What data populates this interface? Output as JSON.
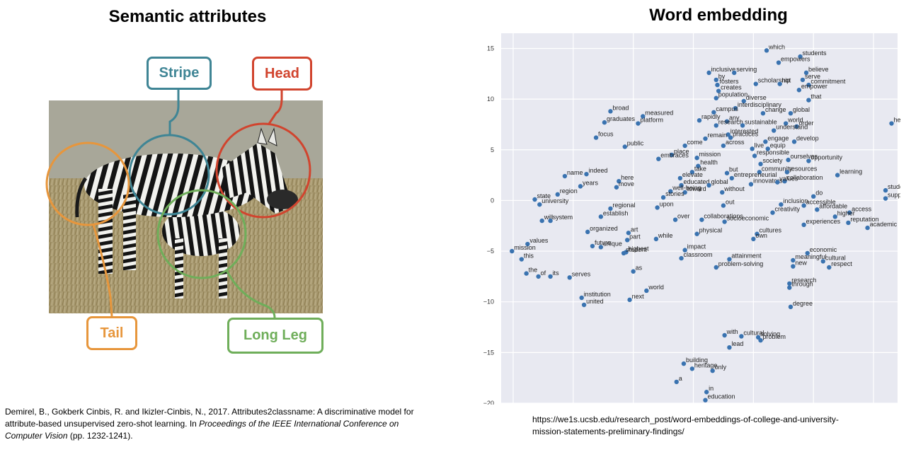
{
  "left_panel": {
    "title": "Semantic attributes",
    "labels": {
      "stripe": "Stripe",
      "head": "Head",
      "tail": "Tail",
      "long_leg": "Long Leg"
    },
    "colors": {
      "stripe": "#3f8595",
      "head": "#d1442e",
      "tail": "#e7963c",
      "long_leg": "#6fae5a"
    },
    "citation": {
      "authors": "Demirel, B., Gokberk Cinbis, R. and Ikizler-Cinbis, N., 2017. Attributes2classname: A discriminative model for attribute-based unsupervised zero-shot learning. In ",
      "venue": "Proceedings of the IEEE International Conference on Computer Vision",
      "pages": " (pp. 1232-1241)."
    }
  },
  "right_panel": {
    "title": "Word embedding",
    "source_url": "https://we1s.ucsb.edu/research_post/word-embeddings-of-college-and-university-mission-statements-preliminary-findings/",
    "chart_data": {
      "type": "scatter",
      "title": "",
      "xlabel": "",
      "ylabel": "",
      "ylim": [
        -20,
        16.5
      ],
      "xlim": [
        -11,
        22
      ],
      "y_ticks": [
        15,
        10,
        5,
        0,
        -5,
        -10,
        -15,
        -20
      ],
      "y_tick_labels": [
        "15",
        "10",
        "5",
        "0",
        "−5",
        "−10",
        "−15",
        "−20"
      ],
      "grid": true,
      "point_color": "#3a73b0",
      "points": [
        {
          "x": 11.1,
          "y": 14.8,
          "label": "which"
        },
        {
          "x": 13.9,
          "y": 14.2,
          "label": "students"
        },
        {
          "x": 12.1,
          "y": 13.6,
          "label": "empowers"
        },
        {
          "x": 14.4,
          "y": 12.6,
          "label": "believe"
        },
        {
          "x": 14.1,
          "y": 11.9,
          "label": "serve"
        },
        {
          "x": 6.3,
          "y": 12.6,
          "label": "inclusive"
        },
        {
          "x": 8.4,
          "y": 12.6,
          "label": "serving"
        },
        {
          "x": 6.9,
          "y": 11.9,
          "label": "by"
        },
        {
          "x": 7.0,
          "y": 11.4,
          "label": "fosters"
        },
        {
          "x": 10.2,
          "y": 11.5,
          "label": "scholarship"
        },
        {
          "x": 12.2,
          "y": 11.5,
          "label": "not"
        },
        {
          "x": 14.6,
          "y": 11.4,
          "label": "commitment"
        },
        {
          "x": 13.8,
          "y": 10.9,
          "label": "empower"
        },
        {
          "x": 7.1,
          "y": 10.8,
          "label": "creates"
        },
        {
          "x": 6.9,
          "y": 10.1,
          "label": "population"
        },
        {
          "x": 9.2,
          "y": 9.8,
          "label": "diverse"
        },
        {
          "x": 14.6,
          "y": 9.9,
          "label": "that"
        },
        {
          "x": 8.5,
          "y": 9.1,
          "label": "interdisciplinary"
        },
        {
          "x": 6.7,
          "y": 8.7,
          "label": "campus"
        },
        {
          "x": 10.8,
          "y": 8.6,
          "label": "change"
        },
        {
          "x": 13.1,
          "y": 8.6,
          "label": "global"
        },
        {
          "x": -1.9,
          "y": 8.8,
          "label": "broad"
        },
        {
          "x": 0.8,
          "y": 8.3,
          "label": "measured"
        },
        {
          "x": 5.5,
          "y": 7.9,
          "label": "rapidly"
        },
        {
          "x": 7.8,
          "y": 7.8,
          "label": "any"
        },
        {
          "x": 6.9,
          "y": 7.4,
          "label": "research"
        },
        {
          "x": 9.1,
          "y": 7.4,
          "label": "sustainable"
        },
        {
          "x": 12.7,
          "y": 7.6,
          "label": "world"
        },
        {
          "x": 13.6,
          "y": 7.3,
          "label": "order"
        },
        {
          "x": 21.5,
          "y": 7.6,
          "label": "head"
        },
        {
          "x": -2.4,
          "y": 7.7,
          "label": "graduates"
        },
        {
          "x": 0.4,
          "y": 7.6,
          "label": "platform"
        },
        {
          "x": 11.7,
          "y": 6.9,
          "label": "understand"
        },
        {
          "x": 7.9,
          "y": 6.5,
          "label": "interested"
        },
        {
          "x": -3.1,
          "y": 6.2,
          "label": "focus"
        },
        {
          "x": 6.0,
          "y": 6.1,
          "label": "remain"
        },
        {
          "x": 8.1,
          "y": 6.2,
          "label": "practices"
        },
        {
          "x": 4.3,
          "y": 5.4,
          "label": "come"
        },
        {
          "x": 7.5,
          "y": 5.4,
          "label": "across"
        },
        {
          "x": 11.0,
          "y": 5.8,
          "label": "engage"
        },
        {
          "x": 13.4,
          "y": 5.8,
          "label": "develop"
        },
        {
          "x": -0.7,
          "y": 5.3,
          "label": "public"
        },
        {
          "x": 9.9,
          "y": 5.1,
          "label": "live"
        },
        {
          "x": 11.2,
          "y": 5.1,
          "label": "equip"
        },
        {
          "x": 3.2,
          "y": 4.5,
          "label": "place"
        },
        {
          "x": 10.1,
          "y": 4.4,
          "label": "responsible"
        },
        {
          "x": 2.1,
          "y": 4.1,
          "label": "embraces"
        },
        {
          "x": 5.3,
          "y": 4.2,
          "label": "mission"
        },
        {
          "x": 12.9,
          "y": 4.0,
          "label": "ourselves"
        },
        {
          "x": 14.6,
          "y": 3.9,
          "label": "opportunity"
        },
        {
          "x": 5.4,
          "y": 3.4,
          "label": "health"
        },
        {
          "x": 10.6,
          "y": 3.6,
          "label": "society"
        },
        {
          "x": 4.9,
          "y": 2.8,
          "label": "take"
        },
        {
          "x": 7.8,
          "y": 2.7,
          "label": "but"
        },
        {
          "x": 10.5,
          "y": 2.8,
          "label": "community"
        },
        {
          "x": 12.8,
          "y": 2.8,
          "label": "resources"
        },
        {
          "x": 17.0,
          "y": 2.5,
          "label": "learning"
        },
        {
          "x": -5.7,
          "y": 2.4,
          "label": "name"
        },
        {
          "x": -3.9,
          "y": 2.6,
          "label": "indeed"
        },
        {
          "x": -1.2,
          "y": 1.9,
          "label": "here"
        },
        {
          "x": 3.9,
          "y": 2.2,
          "label": "elevate"
        },
        {
          "x": 8.2,
          "y": 2.2,
          "label": "entrepreneurial"
        },
        {
          "x": 12.6,
          "y": 1.9,
          "label": "collaboration"
        },
        {
          "x": -4.4,
          "y": 1.4,
          "label": "years"
        },
        {
          "x": -1.4,
          "y": 1.3,
          "label": "move"
        },
        {
          "x": 4.0,
          "y": 1.5,
          "label": "educated"
        },
        {
          "x": 6.3,
          "y": 1.5,
          "label": "global"
        },
        {
          "x": 9.8,
          "y": 1.6,
          "label": "innovators"
        },
        {
          "x": 12.0,
          "y": 1.8,
          "label": "values"
        },
        {
          "x": 3.1,
          "y": 0.9,
          "label": "well-being"
        },
        {
          "x": 4.3,
          "y": 0.8,
          "label": "toward"
        },
        {
          "x": 7.4,
          "y": 0.8,
          "label": "without"
        },
        {
          "x": 21.0,
          "y": 1.0,
          "label": "students"
        },
        {
          "x": -8.2,
          "y": 0.1,
          "label": "state"
        },
        {
          "x": -6.3,
          "y": 0.6,
          "label": "region"
        },
        {
          "x": 2.5,
          "y": 0.3,
          "label": "stories"
        },
        {
          "x": 15.0,
          "y": 0.4,
          "label": "do"
        },
        {
          "x": 21.0,
          "y": 0.2,
          "label": "support"
        },
        {
          "x": -7.8,
          "y": -0.4,
          "label": "university"
        },
        {
          "x": 12.3,
          "y": -0.4,
          "label": "inclusion"
        },
        {
          "x": 14.2,
          "y": -0.5,
          "label": "accessible"
        },
        {
          "x": -1.9,
          "y": -0.8,
          "label": "regional"
        },
        {
          "x": 2.0,
          "y": -0.7,
          "label": "upon"
        },
        {
          "x": 7.5,
          "y": -0.5,
          "label": "out"
        },
        {
          "x": 15.3,
          "y": -0.9,
          "label": "affordable"
        },
        {
          "x": 18.0,
          "y": -1.2,
          "label": "access"
        },
        {
          "x": 11.6,
          "y": -1.2,
          "label": "creativity"
        },
        {
          "x": 16.8,
          "y": -1.6,
          "label": "higher"
        },
        {
          "x": -2.7,
          "y": -1.6,
          "label": "establish"
        },
        {
          "x": -7.6,
          "y": -2.0,
          "label": "will"
        },
        {
          "x": -6.9,
          "y": -2.0,
          "label": "system"
        },
        {
          "x": 3.5,
          "y": -1.9,
          "label": "over"
        },
        {
          "x": 5.7,
          "y": -1.9,
          "label": "collaborations"
        },
        {
          "x": 7.6,
          "y": -2.1,
          "label": "socioeconomic"
        },
        {
          "x": 14.2,
          "y": -2.4,
          "label": "experiences"
        },
        {
          "x": 17.9,
          "y": -2.2,
          "label": "reputation"
        },
        {
          "x": 19.5,
          "y": -2.7,
          "label": "academic"
        },
        {
          "x": -3.8,
          "y": -3.1,
          "label": "organized"
        },
        {
          "x": -0.4,
          "y": -3.2,
          "label": "art"
        },
        {
          "x": 5.3,
          "y": -3.3,
          "label": "physical"
        },
        {
          "x": 10.3,
          "y": -3.3,
          "label": "cultures"
        },
        {
          "x": 1.9,
          "y": -3.8,
          "label": "while"
        },
        {
          "x": -0.5,
          "y": -3.9,
          "label": "part"
        },
        {
          "x": 10.0,
          "y": -3.8,
          "label": "own"
        },
        {
          "x": -8.8,
          "y": -4.3,
          "label": "values"
        },
        {
          "x": -3.4,
          "y": -4.5,
          "label": "future"
        },
        {
          "x": -2.7,
          "y": -4.6,
          "label": "unique"
        },
        {
          "x": -0.6,
          "y": -5.1,
          "label": "highest"
        },
        {
          "x": -10.1,
          "y": -5.0,
          "label": "mission"
        },
        {
          "x": 4.3,
          "y": -4.9,
          "label": "impact"
        },
        {
          "x": 14.5,
          "y": -5.2,
          "label": "economic"
        },
        {
          "x": -0.8,
          "y": -5.2,
          "label": "student"
        },
        {
          "x": -9.3,
          "y": -5.8,
          "label": "this"
        },
        {
          "x": 4.0,
          "y": -5.7,
          "label": "classroom"
        },
        {
          "x": 8.0,
          "y": -5.8,
          "label": "attainment"
        },
        {
          "x": 13.3,
          "y": -5.9,
          "label": "meaningful"
        },
        {
          "x": 15.8,
          "y": -6.0,
          "label": "cultural"
        },
        {
          "x": 6.9,
          "y": -6.6,
          "label": "problem-solving"
        },
        {
          "x": 13.3,
          "y": -6.5,
          "label": "new"
        },
        {
          "x": 16.3,
          "y": -6.6,
          "label": "respect"
        },
        {
          "x": 0.0,
          "y": -7.0,
          "label": "as"
        },
        {
          "x": -8.9,
          "y": -7.2,
          "label": "the"
        },
        {
          "x": -7.9,
          "y": -7.5,
          "label": "of"
        },
        {
          "x": -6.9,
          "y": -7.5,
          "label": "its"
        },
        {
          "x": -5.3,
          "y": -7.6,
          "label": "serves"
        },
        {
          "x": 13.0,
          "y": -8.2,
          "label": "research"
        },
        {
          "x": 13.0,
          "y": -8.6,
          "label": "through"
        },
        {
          "x": 1.1,
          "y": -8.9,
          "label": "world"
        },
        {
          "x": -4.3,
          "y": -9.6,
          "label": "institution"
        },
        {
          "x": -0.3,
          "y": -9.8,
          "label": "next"
        },
        {
          "x": -4.1,
          "y": -10.3,
          "label": "united"
        },
        {
          "x": 13.1,
          "y": -10.5,
          "label": "degree"
        },
        {
          "x": 7.6,
          "y": -13.3,
          "label": "with"
        },
        {
          "x": 9.0,
          "y": -13.4,
          "label": "cultural"
        },
        {
          "x": 10.4,
          "y": -13.5,
          "label": "solving"
        },
        {
          "x": 10.6,
          "y": -13.8,
          "label": "problem"
        },
        {
          "x": 8.0,
          "y": -14.5,
          "label": "lead"
        },
        {
          "x": 4.2,
          "y": -16.1,
          "label": "building"
        },
        {
          "x": 4.9,
          "y": -16.6,
          "label": "heritage"
        },
        {
          "x": 6.6,
          "y": -16.8,
          "label": "only"
        },
        {
          "x": 3.6,
          "y": -17.9,
          "label": "a"
        },
        {
          "x": 6.1,
          "y": -18.9,
          "label": "in"
        },
        {
          "x": 6.0,
          "y": -19.7,
          "label": "education"
        }
      ]
    }
  }
}
